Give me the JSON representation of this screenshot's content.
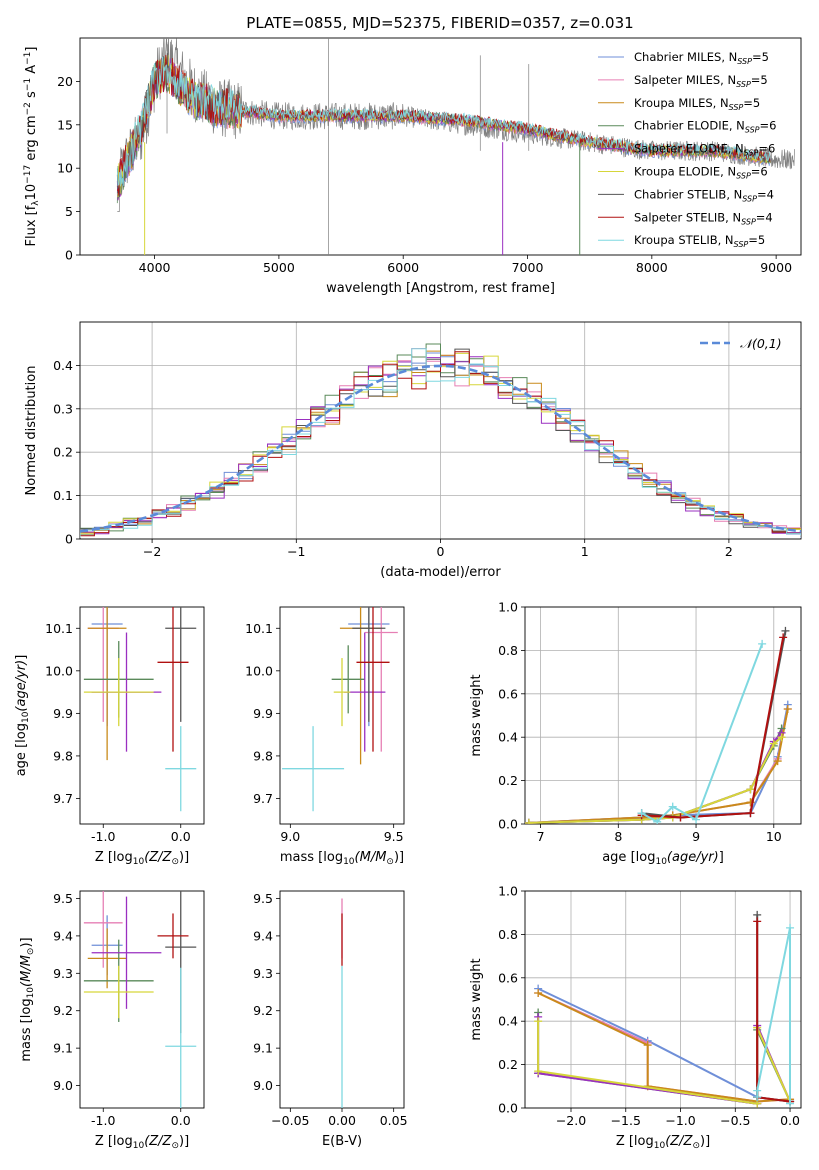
{
  "title": "PLATE=0855, MJD=52375, FIBERID=0357, z=0.031",
  "models": [
    {
      "label": "Chabrier MILES, N_SSP=5",
      "base": "Chabrier MILES, N",
      "sub": "SSP",
      "suffix": "=5",
      "color": "#6f8fd8"
    },
    {
      "label": "Salpeter MILES, N_SSP=5",
      "base": "Salpeter MILES, N",
      "sub": "SSP",
      "suffix": "=5",
      "color": "#e67fb4"
    },
    {
      "label": "Kroupa MILES, N_SSP=5",
      "base": "Kroupa MILES, N",
      "sub": "SSP",
      "suffix": "=5",
      "color": "#c98a1a"
    },
    {
      "label": "Chabrier ELODIE, N_SSP=6",
      "base": "Chabrier ELODIE, N",
      "sub": "SSP",
      "suffix": "=6",
      "color": "#5a8a5a"
    },
    {
      "label": "Salpeter ELODIE, N_SSP=6",
      "base": "Salpeter ELODIE, N",
      "sub": "SSP",
      "suffix": "=6",
      "color": "#9a2fc0"
    },
    {
      "label": "Kroupa ELODIE, N_SSP=6",
      "base": "Kroupa ELODIE, N",
      "sub": "SSP",
      "suffix": "=6",
      "color": "#d6d63a"
    },
    {
      "label": "Chabrier STELIB, N_SSP=4",
      "base": "Chabrier STELIB, N",
      "sub": "SSP",
      "suffix": "=4",
      "color": "#555555"
    },
    {
      "label": "Salpeter STELIB, N_SSP=4",
      "base": "Salpeter STELIB, N",
      "sub": "SSP",
      "suffix": "=4",
      "color": "#b01010"
    },
    {
      "label": "Kroupa STELIB, N_SSP=5",
      "base": "Kroupa STELIB, N",
      "sub": "SSP",
      "suffix": "=5",
      "color": "#7fd8e0"
    }
  ],
  "chart_data": [
    {
      "id": "spectrum",
      "type": "line",
      "xlabel": "wavelength [Angstrom, rest frame]",
      "ylabel": "Flux [f_λ 10^-17 erg cm^-2 s^-1 A^-1]",
      "xlim": [
        3400,
        9200
      ],
      "ylim": [
        0,
        25
      ],
      "xticks": [
        4000,
        5000,
        6000,
        7000,
        8000,
        9000
      ],
      "yticks": [
        0,
        5,
        10,
        15,
        20
      ],
      "grid": false,
      "legend": "top-right",
      "data_color": "#808080",
      "data_envelope": {
        "x": [
          3700,
          3900,
          4000,
          4100,
          4300,
          4500,
          5000,
          5500,
          6000,
          6500,
          7000,
          7500,
          8000,
          8500,
          9000
        ],
        "y": [
          9,
          14,
          20,
          23,
          19,
          17,
          16,
          16,
          16,
          15,
          14,
          13,
          12,
          12,
          11
        ]
      },
      "model_envelope": {
        "x": [
          3700,
          3900,
          4000,
          4100,
          4300,
          4500,
          5000,
          5500,
          6000,
          6500,
          7000,
          7500,
          8000,
          8500,
          9000
        ],
        "y": [
          8,
          15,
          20,
          21,
          18,
          17,
          16,
          16,
          16,
          15.5,
          14.5,
          13,
          12,
          12,
          11
        ]
      }
    },
    {
      "id": "residuals",
      "type": "step",
      "xlabel": "(data-model)/error",
      "ylabel": "Normed distribution",
      "xlim": [
        -2.5,
        2.5
      ],
      "ylim": [
        0,
        0.5
      ],
      "xticks": [
        -2,
        -1,
        0,
        1,
        2
      ],
      "yticks": [
        0.0,
        0.1,
        0.2,
        0.3,
        0.4
      ],
      "grid": true,
      "legend": "top-right",
      "reference": {
        "name": "𝒩(0,1)",
        "color": "#5a8ad8"
      }
    },
    {
      "id": "age_vs_Z",
      "type": "errorbar",
      "xlabel": "Z [log10(Z/Z⊙)]",
      "ylabel": "age [log10(age/yr)]",
      "xlim": [
        -1.3,
        0.3
      ],
      "ylim": [
        9.64,
        10.15
      ],
      "xticks": [
        -1,
        0
      ],
      "yticks": [
        9.7,
        9.8,
        9.9,
        10.0,
        10.1
      ],
      "points": [
        {
          "x": -0.95,
          "xerr": 0.2,
          "y": 10.11,
          "yerr": 0.24,
          "c": 0
        },
        {
          "x": -1.0,
          "xerr": 0.2,
          "y": 10.1,
          "yerr": 0.22,
          "c": 1
        },
        {
          "x": -0.95,
          "xerr": 0.25,
          "y": 10.1,
          "yerr": 0.31,
          "c": 2
        },
        {
          "x": -0.8,
          "xerr": 0.45,
          "y": 9.98,
          "yerr": 0.09,
          "c": 3
        },
        {
          "x": -0.7,
          "xerr": 0.45,
          "y": 9.95,
          "yerr": 0.14,
          "c": 4
        },
        {
          "x": -0.8,
          "xerr": 0.45,
          "y": 9.95,
          "yerr": 0.08,
          "c": 5
        },
        {
          "x": 0.0,
          "xerr": 0.2,
          "y": 10.1,
          "yerr": 0.22,
          "c": 6
        },
        {
          "x": -0.1,
          "xerr": 0.2,
          "y": 10.02,
          "yerr": 0.21,
          "c": 7
        },
        {
          "x": 0.0,
          "xerr": 0.2,
          "y": 9.77,
          "yerr": 0.1,
          "c": 8
        }
      ]
    },
    {
      "id": "age_vs_mass",
      "type": "errorbar",
      "xlabel": "mass [log10(M/M⊙)]",
      "ylabel": "",
      "xlim": [
        8.95,
        9.55
      ],
      "ylim": [
        9.64,
        10.15
      ],
      "xticks": [
        9.0,
        9.5
      ],
      "yticks": [
        9.7,
        9.8,
        9.9,
        10.0,
        10.1
      ],
      "points": [
        {
          "x": 9.38,
          "xerr": 0.1,
          "y": 10.11,
          "yerr": 0.24,
          "c": 0
        },
        {
          "x": 9.44,
          "xerr": 0.08,
          "y": 10.09,
          "yerr": 0.28,
          "c": 1
        },
        {
          "x": 9.34,
          "xerr": 0.1,
          "y": 10.1,
          "yerr": 0.32,
          "c": 2
        },
        {
          "x": 9.28,
          "xerr": 0.08,
          "y": 9.98,
          "yerr": 0.08,
          "c": 3
        },
        {
          "x": 9.36,
          "xerr": 0.1,
          "y": 9.95,
          "yerr": 0.14,
          "c": 4
        },
        {
          "x": 9.25,
          "xerr": 0.04,
          "y": 9.95,
          "yerr": 0.08,
          "c": 5
        },
        {
          "x": 9.38,
          "xerr": 0.08,
          "y": 10.1,
          "yerr": 0.22,
          "c": 6
        },
        {
          "x": 9.4,
          "xerr": 0.08,
          "y": 10.02,
          "yerr": 0.21,
          "c": 7
        },
        {
          "x": 9.11,
          "xerr": 0.15,
          "y": 9.77,
          "yerr": 0.1,
          "c": 8
        }
      ]
    },
    {
      "id": "weight_vs_age",
      "type": "line",
      "xlabel": "age  [log10(age/yr)]",
      "ylabel": "mass weight",
      "xlim": [
        6.8,
        10.35
      ],
      "ylim": [
        0,
        1
      ],
      "xticks": [
        7,
        8,
        9,
        10
      ],
      "yticks": [
        0.0,
        0.2,
        0.4,
        0.6,
        0.8,
        1.0
      ],
      "grid": true,
      "series": [
        {
          "c": 0,
          "x": [
            6.85,
            8.3,
            8.7,
            9.7,
            10.05,
            10.18
          ],
          "y": [
            0.005,
            0.03,
            0.04,
            0.05,
            0.31,
            0.55
          ]
        },
        {
          "c": 1,
          "x": [
            6.85,
            8.3,
            8.7,
            9.7,
            10.05,
            10.18
          ],
          "y": [
            0.005,
            0.03,
            0.04,
            0.1,
            0.3,
            0.53
          ]
        },
        {
          "c": 2,
          "x": [
            6.85,
            8.3,
            8.7,
            9.7,
            10.05,
            10.18
          ],
          "y": [
            0.005,
            0.03,
            0.04,
            0.1,
            0.29,
            0.53
          ]
        },
        {
          "c": 3,
          "x": [
            6.85,
            8.3,
            8.7,
            9.7,
            10.0,
            10.1
          ],
          "y": [
            0.005,
            0.02,
            0.03,
            0.16,
            0.36,
            0.44
          ]
        },
        {
          "c": 4,
          "x": [
            6.85,
            8.3,
            8.7,
            9.7,
            10.0,
            10.1
          ],
          "y": [
            0.005,
            0.02,
            0.03,
            0.16,
            0.38,
            0.42
          ]
        },
        {
          "c": 5,
          "x": [
            6.85,
            8.3,
            8.7,
            9.7,
            10.0,
            10.1
          ],
          "y": [
            0.005,
            0.02,
            0.03,
            0.16,
            0.37,
            0.4
          ]
        },
        {
          "c": 6,
          "x": [
            8.3,
            8.8,
            9.7,
            10.15
          ],
          "y": [
            0.05,
            0.03,
            0.05,
            0.89
          ]
        },
        {
          "c": 7,
          "x": [
            8.3,
            8.8,
            9.7,
            10.12
          ],
          "y": [
            0.04,
            0.03,
            0.05,
            0.86
          ]
        },
        {
          "c": 8,
          "x": [
            8.3,
            8.5,
            8.7,
            9.0,
            9.85
          ],
          "y": [
            0.05,
            0.01,
            0.08,
            0.02,
            0.83
          ]
        }
      ]
    },
    {
      "id": "mass_vs_Z",
      "type": "errorbar",
      "xlabel": "Z [log10(Z/Z⊙)]",
      "ylabel": "mass [log10(M/M⊙)]",
      "xlim": [
        -1.3,
        0.3
      ],
      "ylim": [
        8.94,
        9.52
      ],
      "xticks": [
        -1,
        0
      ],
      "yticks": [
        9.0,
        9.1,
        9.2,
        9.3,
        9.4,
        9.5
      ],
      "points": [
        {
          "x": -0.95,
          "xerr": 0.2,
          "y": 9.375,
          "yerr": 0.08,
          "c": 0
        },
        {
          "x": -1.0,
          "xerr": 0.25,
          "y": 9.435,
          "yerr": 0.12,
          "c": 1
        },
        {
          "x": -0.95,
          "xerr": 0.25,
          "y": 9.34,
          "yerr": 0.08,
          "c": 2
        },
        {
          "x": -0.8,
          "xerr": 0.45,
          "y": 9.28,
          "yerr": 0.11,
          "c": 3
        },
        {
          "x": -0.7,
          "xerr": 0.45,
          "y": 9.355,
          "yerr": 0.15,
          "c": 4
        },
        {
          "x": -0.8,
          "xerr": 0.45,
          "y": 9.25,
          "yerr": 0.07,
          "c": 5
        },
        {
          "x": 0.0,
          "xerr": 0.2,
          "y": 9.37,
          "yerr": 0.23,
          "c": 6
        },
        {
          "x": -0.1,
          "xerr": 0.2,
          "y": 9.4,
          "yerr": 0.06,
          "c": 7
        },
        {
          "x": 0.0,
          "xerr": 0.2,
          "y": 9.105,
          "yerr": 0.21,
          "c": 8
        }
      ]
    },
    {
      "id": "mass_vs_ebv",
      "type": "errorbar",
      "xlabel": "E(B-V)",
      "ylabel": "",
      "xlim": [
        -0.06,
        0.06
      ],
      "ylim": [
        8.94,
        9.52
      ],
      "xticks": [
        -0.05,
        0.0,
        0.05
      ],
      "yticks": [
        9.0,
        9.1,
        9.2,
        9.3,
        9.4,
        9.5
      ],
      "points": [
        {
          "x": 0.0,
          "xerr": 0,
          "y": 9.42,
          "yerr": 0.08,
          "c": 1
        },
        {
          "x": 0.0,
          "xerr": 0,
          "y": 9.39,
          "yerr": 0.07,
          "c": 7
        },
        {
          "x": 0.0,
          "xerr": 0,
          "y": 9.1,
          "yerr": 0.22,
          "c": 8
        }
      ]
    },
    {
      "id": "weight_vs_Z",
      "type": "line",
      "xlabel": "Z [log10(Z/Z⊙)]",
      "ylabel": "mass weight",
      "xlim": [
        -2.42,
        0.1
      ],
      "ylim": [
        0,
        1
      ],
      "xticks": [
        -2.0,
        -1.5,
        -1.0,
        -0.5,
        0.0
      ],
      "yticks": [
        0.0,
        0.2,
        0.4,
        0.6,
        0.8,
        1.0
      ],
      "grid": true,
      "series": [
        {
          "c": 0,
          "x": [
            -2.3,
            -1.3,
            -0.3,
            0.0
          ],
          "y": [
            0.55,
            0.31,
            0.05,
            0.03
          ]
        },
        {
          "c": 1,
          "x": [
            -2.3,
            -1.3,
            -1.3,
            -0.3,
            0.0
          ],
          "y": [
            0.53,
            0.3,
            0.1,
            0.03,
            0.04
          ]
        },
        {
          "c": 2,
          "x": [
            -2.3,
            -1.3,
            -1.3,
            -0.3,
            0.0
          ],
          "y": [
            0.53,
            0.29,
            0.1,
            0.03,
            0.04
          ]
        },
        {
          "c": 3,
          "x": [
            -2.3,
            -2.3,
            -0.3,
            -0.3,
            0.0
          ],
          "y": [
            0.44,
            0.16,
            0.02,
            0.36,
            0.03
          ]
        },
        {
          "c": 4,
          "x": [
            -2.3,
            -2.3,
            -0.3,
            -0.3,
            0.0
          ],
          "y": [
            0.42,
            0.16,
            0.02,
            0.38,
            0.03
          ]
        },
        {
          "c": 5,
          "x": [
            -2.3,
            -2.3,
            -0.3,
            -0.3,
            0.0
          ],
          "y": [
            0.4,
            0.17,
            0.02,
            0.37,
            0.03
          ]
        },
        {
          "c": 6,
          "x": [
            -0.3,
            -0.3,
            0.0
          ],
          "y": [
            0.89,
            0.05,
            0.03
          ]
        },
        {
          "c": 7,
          "x": [
            -0.3,
            -0.3,
            0.0
          ],
          "y": [
            0.86,
            0.05,
            0.03
          ]
        },
        {
          "c": 8,
          "x": [
            -0.3,
            -0.3,
            0.0,
            0.0
          ],
          "y": [
            0.05,
            0.08,
            0.83,
            0.02
          ]
        }
      ]
    }
  ]
}
